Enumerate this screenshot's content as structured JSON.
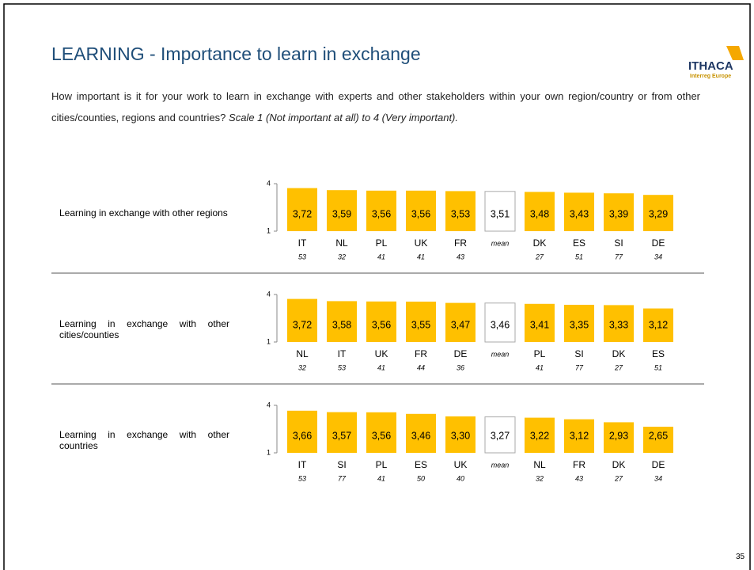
{
  "header": {
    "title": "LEARNING - Importance to learn in exchange",
    "logo": "ITHACA",
    "logo_sub": "Interreg Europe",
    "question": "How important is it for your work to learn in exchange with experts and other stakeholders within your own region/country or from other cities/counties, regions and countries?",
    "scale": "Scale 1 (Not important at all) to 4 (Very important)."
  },
  "page_number": "35",
  "chart_data": [
    {
      "type": "bar",
      "title": "Learning in exchange with other regions",
      "categories": [
        "IT",
        "NL",
        "PL",
        "UK",
        "FR",
        "mean",
        "DK",
        "ES",
        "SI",
        "DE"
      ],
      "values": [
        3.72,
        3.59,
        3.56,
        3.56,
        3.53,
        3.51,
        3.48,
        3.43,
        3.39,
        3.29
      ],
      "value_labels": [
        "3,72",
        "3,59",
        "3,56",
        "3,56",
        "3,53",
        "3,51",
        "3,48",
        "3,43",
        "3,39",
        "3,29"
      ],
      "counts": [
        53,
        32,
        41,
        41,
        43,
        null,
        27,
        51,
        77,
        34
      ],
      "colors": [
        "#ffc000",
        "#ffc000",
        "#ffc000",
        "#ffc000",
        "#ffc000",
        "#ffffff",
        "#ffc000",
        "#ffc000",
        "#ffc000",
        "#ffc000"
      ],
      "ylim": [
        1,
        4
      ],
      "yticks": [
        1,
        4
      ]
    },
    {
      "type": "bar",
      "title": "Learning in exchange with other cities/counties",
      "categories": [
        "NL",
        "IT",
        "UK",
        "FR",
        "DE",
        "mean",
        "PL",
        "SI",
        "DK",
        "ES"
      ],
      "values": [
        3.72,
        3.58,
        3.56,
        3.55,
        3.47,
        3.46,
        3.41,
        3.35,
        3.33,
        3.12
      ],
      "value_labels": [
        "3,72",
        "3,58",
        "3,56",
        "3,55",
        "3,47",
        "3,46",
        "3,41",
        "3,35",
        "3,33",
        "3,12"
      ],
      "counts": [
        32,
        53,
        41,
        44,
        36,
        null,
        41,
        77,
        27,
        51
      ],
      "colors": [
        "#ffc000",
        "#ffc000",
        "#ffc000",
        "#ffc000",
        "#ffc000",
        "#ffffff",
        "#ffc000",
        "#ffc000",
        "#ffc000",
        "#ffc000"
      ],
      "ylim": [
        1,
        4
      ],
      "yticks": [
        1,
        4
      ]
    },
    {
      "type": "bar",
      "title": "Learning in exchange with other countries",
      "categories": [
        "IT",
        "SI",
        "PL",
        "ES",
        "UK",
        "mean",
        "NL",
        "FR",
        "DK",
        "DE"
      ],
      "values": [
        3.66,
        3.57,
        3.56,
        3.46,
        3.3,
        3.27,
        3.22,
        3.12,
        2.93,
        2.65
      ],
      "value_labels": [
        "3,66",
        "3,57",
        "3,56",
        "3,46",
        "3,30",
        "3,27",
        "3,22",
        "3,12",
        "2,93",
        "2,65"
      ],
      "counts": [
        53,
        77,
        41,
        50,
        40,
        null,
        32,
        43,
        27,
        34
      ],
      "colors": [
        "#ffc000",
        "#ffc000",
        "#ffc000",
        "#ffc000",
        "#ffc000",
        "#ffffff",
        "#ffc000",
        "#ffc000",
        "#ffc000",
        "#ffc000"
      ],
      "ylim": [
        1,
        4
      ],
      "yticks": [
        1,
        4
      ]
    }
  ]
}
